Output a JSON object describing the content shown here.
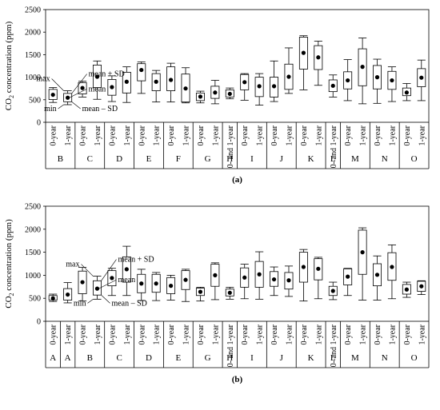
{
  "chart_data": [
    {
      "type": "boxplot",
      "panel_label": "(a)",
      "ylabel": "CO2 concentration (ppm)",
      "ylabel_main": "CO",
      "ylabel_sub": "2",
      "ylabel_rest": " concentration (ppm)",
      "ylim": [
        0,
        2500
      ],
      "yticks": [
        "0",
        "500",
        "1000",
        "1500",
        "2000",
        "2500"
      ],
      "groups": [
        {
          "name": "B",
          "items": [
            {
              "label": "0-year",
              "min": 440,
              "mean_minus_sd": 505,
              "mean": 610,
              "mean_plus_sd": 730,
              "max": 770
            },
            {
              "label": "1-year",
              "min": 390,
              "mean_minus_sd": 455,
              "mean": 545,
              "mean_plus_sd": 640,
              "max": 700
            }
          ]
        },
        {
          "name": "C",
          "items": [
            {
              "label": "0-year",
              "min": 560,
              "mean_minus_sd": 630,
              "mean": 760,
              "mean_plus_sd": 880,
              "max": 910
            },
            {
              "label": "1-year",
              "min": 510,
              "mean_minus_sd": 770,
              "mean": 1010,
              "mean_plus_sd": 1270,
              "max": 1360
            }
          ]
        },
        {
          "name": "D",
          "items": [
            {
              "label": "0-year",
              "min": 460,
              "mean_minus_sd": 600,
              "mean": 780,
              "mean_plus_sd": 950,
              "max": 1030
            },
            {
              "label": "1-year",
              "min": 440,
              "mean_minus_sd": 650,
              "mean": 900,
              "mean_plus_sd": 1110,
              "max": 1230
            }
          ]
        },
        {
          "name": "E",
          "items": [
            {
              "label": "0-year",
              "min": 640,
              "mean_minus_sd": 920,
              "mean": 1160,
              "mean_plus_sd": 1300,
              "max": 1340
            },
            {
              "label": "1-year",
              "min": 450,
              "mean_minus_sd": 700,
              "mean": 900,
              "mean_plus_sd": 1080,
              "max": 1150
            }
          ]
        },
        {
          "name": "F",
          "items": [
            {
              "label": "0-year",
              "min": 450,
              "mean_minus_sd": 700,
              "mean": 940,
              "mean_plus_sd": 1230,
              "max": 1310
            },
            {
              "label": "1-year",
              "min": 430,
              "mean_minus_sd": 450,
              "mean": 750,
              "mean_plus_sd": 1070,
              "max": 1210
            }
          ]
        },
        {
          "name": "G",
          "items": [
            {
              "label": "0-year",
              "min": 430,
              "mean_minus_sd": 480,
              "mean": 570,
              "mean_plus_sd": 650,
              "max": 690
            },
            {
              "label": "1-year",
              "min": 410,
              "mean_minus_sd": 530,
              "mean": 660,
              "mean_plus_sd": 800,
              "max": 930
            }
          ]
        },
        {
          "name": "H",
          "items": [
            {
              "label": "0- and 1-year",
              "min": 520,
              "mean_minus_sd": 560,
              "mean": 630,
              "mean_plus_sd": 720,
              "max": 760
            }
          ]
        },
        {
          "name": "I",
          "items": [
            {
              "label": "0-year",
              "min": 490,
              "mean_minus_sd": 720,
              "mean": 890,
              "mean_plus_sd": 1060,
              "max": 1080
            },
            {
              "label": "1-year",
              "min": 380,
              "mean_minus_sd": 570,
              "mean": 800,
              "mean_plus_sd": 1000,
              "max": 1080
            }
          ]
        },
        {
          "name": "J",
          "items": [
            {
              "label": "0-year",
              "min": 460,
              "mean_minus_sd": 560,
              "mean": 800,
              "mean_plus_sd": 1000,
              "max": 1360
            },
            {
              "label": "1-year",
              "min": 640,
              "mean_minus_sd": 730,
              "mean": 1010,
              "mean_plus_sd": 1290,
              "max": 1650
            }
          ]
        },
        {
          "name": "K",
          "items": [
            {
              "label": "0-year",
              "min": 720,
              "mean_minus_sd": 1180,
              "mean": 1540,
              "mean_plus_sd": 1890,
              "max": 1920
            },
            {
              "label": "1-year",
              "min": 820,
              "mean_minus_sd": 1170,
              "mean": 1440,
              "mean_plus_sd": 1700,
              "max": 1800
            }
          ]
        },
        {
          "name": "L",
          "items": [
            {
              "label": "0- and 1-year",
              "min": 560,
              "mean_minus_sd": 680,
              "mean": 810,
              "mean_plus_sd": 940,
              "max": 1050
            }
          ]
        },
        {
          "name": "M",
          "items": [
            {
              "label": "0-year",
              "min": 480,
              "mean_minus_sd": 740,
              "mean": 930,
              "mean_plus_sd": 1120,
              "max": 1390
            },
            {
              "label": "1-year",
              "min": 410,
              "mean_minus_sd": 810,
              "mean": 1230,
              "mean_plus_sd": 1630,
              "max": 1870
            }
          ]
        },
        {
          "name": "N",
          "items": [
            {
              "label": "0-year",
              "min": 420,
              "mean_minus_sd": 740,
              "mean": 1000,
              "mean_plus_sd": 1260,
              "max": 1400
            },
            {
              "label": "1-year",
              "min": 460,
              "mean_minus_sd": 730,
              "mean": 930,
              "mean_plus_sd": 1130,
              "max": 1230
            }
          ]
        },
        {
          "name": "O",
          "items": [
            {
              "label": "0-year",
              "min": 480,
              "mean_minus_sd": 590,
              "mean": 660,
              "mean_plus_sd": 760,
              "max": 860
            },
            {
              "label": "1-year",
              "min": 480,
              "mean_minus_sd": 790,
              "mean": 990,
              "mean_plus_sd": 1190,
              "max": 1380
            }
          ]
        }
      ],
      "annotations": [
        {
          "text": "max",
          "points_to": "max"
        },
        {
          "text": "mean + SD",
          "points_to": "mean_plus_sd"
        },
        {
          "text": "mean",
          "points_to": "mean"
        },
        {
          "text": "min",
          "points_to": "min"
        },
        {
          "text": "mean – SD",
          "points_to": "mean_minus_sd"
        }
      ]
    },
    {
      "type": "boxplot",
      "panel_label": "(b)",
      "ylabel": "CO2 concentration (ppm)",
      "ylabel_main": "CO",
      "ylabel_sub": "2",
      "ylabel_rest": " concentration (ppm)",
      "ylim": [
        0,
        2500
      ],
      "yticks": [
        "0",
        "500",
        "1000",
        "1500",
        "2000",
        "2500"
      ],
      "groups": [
        {
          "name": "A",
          "items": [
            {
              "label": "0-year",
              "min": 430,
              "mean_minus_sd": 460,
              "mean": 500,
              "mean_plus_sd": 560,
              "max": 590
            }
          ]
        },
        {
          "name": "A",
          "items": [
            {
              "label": "1-year",
              "min": 400,
              "mean_minus_sd": 460,
              "mean": 580,
              "mean_plus_sd": 710,
              "max": 840
            }
          ]
        },
        {
          "name": "B",
          "items": [
            {
              "label": "0-year",
              "min": 440,
              "mean_minus_sd": 600,
              "mean": 850,
              "mean_plus_sd": 1090,
              "max": 1170
            },
            {
              "label": "1-year",
              "min": 480,
              "mean_minus_sd": 570,
              "mean": 710,
              "mean_plus_sd": 880,
              "max": 980
            }
          ]
        },
        {
          "name": "C",
          "items": [
            {
              "label": "0-year",
              "min": 560,
              "mean_minus_sd": 770,
              "mean": 940,
              "mean_plus_sd": 1100,
              "max": 1150
            },
            {
              "label": "1-year",
              "min": 560,
              "mean_minus_sd": 850,
              "mean": 1130,
              "mean_plus_sd": 1400,
              "max": 1630
            }
          ]
        },
        {
          "name": "D",
          "items": [
            {
              "label": "0-year",
              "min": 450,
              "mean_minus_sd": 620,
              "mean": 820,
              "mean_plus_sd": 1020,
              "max": 1130
            },
            {
              "label": "1-year",
              "min": 450,
              "mean_minus_sd": 630,
              "mean": 820,
              "mean_plus_sd": 1020,
              "max": 1060
            }
          ]
        },
        {
          "name": "E",
          "items": [
            {
              "label": "0-year",
              "min": 460,
              "mean_minus_sd": 600,
              "mean": 770,
              "mean_plus_sd": 950,
              "max": 1000
            },
            {
              "label": "1-year",
              "min": 430,
              "mean_minus_sd": 690,
              "mean": 900,
              "mean_plus_sd": 1100,
              "max": 1130
            }
          ]
        },
        {
          "name": "G",
          "items": [
            {
              "label": "0-year",
              "min": 440,
              "mean_minus_sd": 560,
              "mean": 640,
              "mean_plus_sd": 720,
              "max": 740
            },
            {
              "label": "1-year",
              "min": 470,
              "mean_minus_sd": 760,
              "mean": 1000,
              "mean_plus_sd": 1240,
              "max": 1270
            }
          ]
        },
        {
          "name": "H",
          "items": [
            {
              "label": "0- and 1-year",
              "min": 480,
              "mean_minus_sd": 550,
              "mean": 620,
              "mean_plus_sd": 700,
              "max": 740
            }
          ]
        },
        {
          "name": "I",
          "items": [
            {
              "label": "0-year",
              "min": 490,
              "mean_minus_sd": 740,
              "mean": 950,
              "mean_plus_sd": 1160,
              "max": 1240
            },
            {
              "label": "1-year",
              "min": 480,
              "mean_minus_sd": 740,
              "mean": 1020,
              "mean_plus_sd": 1300,
              "max": 1510
            }
          ]
        },
        {
          "name": "J",
          "items": [
            {
              "label": "0-year",
              "min": 560,
              "mean_minus_sd": 760,
              "mean": 910,
              "mean_plus_sd": 1080,
              "max": 1180
            },
            {
              "label": "1-year",
              "min": 540,
              "mean_minus_sd": 700,
              "mean": 890,
              "mean_plus_sd": 1060,
              "max": 1200
            }
          ]
        },
        {
          "name": "K",
          "items": [
            {
              "label": "0-year",
              "min": 440,
              "mean_minus_sd": 850,
              "mean": 1180,
              "mean_plus_sd": 1500,
              "max": 1560
            },
            {
              "label": "1-year",
              "min": 490,
              "mean_minus_sd": 900,
              "mean": 1140,
              "mean_plus_sd": 1360,
              "max": 1390
            }
          ]
        },
        {
          "name": "L",
          "items": [
            {
              "label": "0- and 1-year",
              "min": 470,
              "mean_minus_sd": 560,
              "mean": 660,
              "mean_plus_sd": 760,
              "max": 850
            }
          ]
        },
        {
          "name": "M",
          "items": [
            {
              "label": "0-year",
              "min": 560,
              "mean_minus_sd": 790,
              "mean": 970,
              "mean_plus_sd": 1140,
              "max": 1150
            },
            {
              "label": "1-year",
              "min": 460,
              "mean_minus_sd": 1020,
              "mean": 1500,
              "mean_plus_sd": 1980,
              "max": 2030
            }
          ]
        },
        {
          "name": "N",
          "items": [
            {
              "label": "0-year",
              "min": 460,
              "mean_minus_sd": 770,
              "mean": 1010,
              "mean_plus_sd": 1250,
              "max": 1420
            },
            {
              "label": "1-year",
              "min": 490,
              "mean_minus_sd": 890,
              "mean": 1180,
              "mean_plus_sd": 1490,
              "max": 1660
            }
          ]
        },
        {
          "name": "O",
          "items": [
            {
              "label": "0-year",
              "min": 520,
              "mean_minus_sd": 590,
              "mean": 690,
              "mean_plus_sd": 800,
              "max": 850
            },
            {
              "label": "1-year",
              "min": 580,
              "mean_minus_sd": 650,
              "mean": 760,
              "mean_plus_sd": 870,
              "max": 880
            }
          ]
        }
      ],
      "annotations": [
        {
          "text": "max",
          "points_to": "max"
        },
        {
          "text": "mean + SD",
          "points_to": "mean_plus_sd"
        },
        {
          "text": "mean",
          "points_to": "mean"
        },
        {
          "text": "min",
          "points_to": "min"
        },
        {
          "text": "mean – SD",
          "points_to": "mean_minus_sd"
        }
      ]
    }
  ]
}
